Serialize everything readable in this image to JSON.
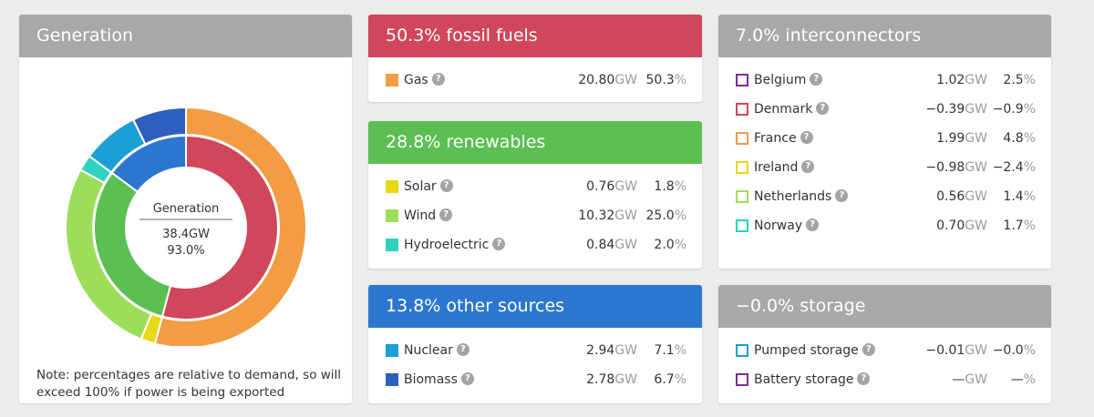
{
  "generation": {
    "title": "Generation",
    "center_label": "Generation",
    "center_gw": "38.4GW",
    "center_pct": "93.0%",
    "note": "Note: percentages are relative to demand, so will exceed 100% if power is being exported"
  },
  "chart_data": {
    "type": "pie",
    "center_label": "Generation",
    "outer_ring": [
      {
        "name": "Gas",
        "value": 50.3,
        "color": "#f39c44"
      },
      {
        "name": "Solar",
        "value": 1.8,
        "color": "#e8d816"
      },
      {
        "name": "Wind",
        "value": 25.0,
        "color": "#9cde5a"
      },
      {
        "name": "Hydroelectric",
        "value": 2.0,
        "color": "#2fd2c0"
      },
      {
        "name": "Nuclear",
        "value": 7.1,
        "color": "#1c9fd4"
      },
      {
        "name": "Biomass",
        "value": 6.7,
        "color": "#2e5fbe"
      }
    ],
    "inner_ring": [
      {
        "name": "fossil fuels",
        "value": 50.3,
        "color": "#d0465a"
      },
      {
        "name": "renewables",
        "value": 28.8,
        "color": "#5bbf53"
      },
      {
        "name": "other sources",
        "value": 13.8,
        "color": "#2d76cf"
      }
    ]
  },
  "fossil": {
    "title": "50.3% fossil fuels",
    "color": "#d0465a",
    "rows": [
      {
        "name": "Gas",
        "gw": "20.80",
        "pct": "50.3",
        "color": "#f39c44"
      }
    ]
  },
  "renewables": {
    "title": "28.8% renewables",
    "color": "#5bbf53",
    "rows": [
      {
        "name": "Solar",
        "gw": "0.76",
        "pct": "1.8",
        "color": "#e8d816"
      },
      {
        "name": "Wind",
        "gw": "10.32",
        "pct": "25.0",
        "color": "#9cde5a"
      },
      {
        "name": "Hydroelectric",
        "gw": "0.84",
        "pct": "2.0",
        "color": "#2fd2c0"
      }
    ]
  },
  "other": {
    "title": "13.8% other sources",
    "color": "#2d76cf",
    "rows": [
      {
        "name": "Nuclear",
        "gw": "2.94",
        "pct": "7.1",
        "color": "#1c9fd4"
      },
      {
        "name": "Biomass",
        "gw": "2.78",
        "pct": "6.7",
        "color": "#2e5fbe"
      }
    ]
  },
  "interconnectors": {
    "title": "7.0% interconnectors",
    "rows": [
      {
        "name": "Belgium",
        "gw": "1.02",
        "pct": "2.5",
        "color": "#7b2d96"
      },
      {
        "name": "Denmark",
        "gw": "−0.39",
        "pct": "−0.9",
        "color": "#d0465a"
      },
      {
        "name": "France",
        "gw": "1.99",
        "pct": "4.8",
        "color": "#f39c44"
      },
      {
        "name": "Ireland",
        "gw": "−0.98",
        "pct": "−2.4",
        "color": "#e8d816"
      },
      {
        "name": "Netherlands",
        "gw": "0.56",
        "pct": "1.4",
        "color": "#9cde5a"
      },
      {
        "name": "Norway",
        "gw": "0.70",
        "pct": "1.7",
        "color": "#2fd2c0"
      }
    ]
  },
  "storage": {
    "title": "−0.0% storage",
    "rows": [
      {
        "name": "Pumped storage",
        "gw": "−0.01",
        "pct": "−0.0",
        "color": "#1c9fd4"
      },
      {
        "name": "Battery storage",
        "gw": "—",
        "pct": "—",
        "color": "#7b2d96"
      }
    ]
  },
  "units": {
    "gw": "GW",
    "pct": "%"
  },
  "help_glyph": "?"
}
